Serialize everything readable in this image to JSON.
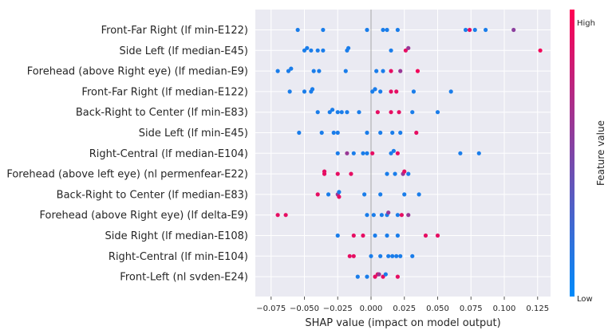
{
  "chart_data": {
    "type": "scatter",
    "subtype": "beeswarm",
    "xlabel": "SHAP value (impact on model output)",
    "xticks": [
      -0.075,
      -0.05,
      -0.025,
      0.0,
      0.025,
      0.05,
      0.075,
      0.1,
      0.125
    ],
    "xtick_labels": [
      "−0.075",
      "−0.050",
      "−0.025",
      "0.000",
      "0.025",
      "0.050",
      "0.075",
      "0.100",
      "0.125"
    ],
    "xlim": [
      -0.085,
      0.137
    ],
    "grid": true,
    "colorbar": {
      "title": "Feature value",
      "high_label": "High",
      "low_label": "Low",
      "high_color": "#ff0052",
      "low_color": "#008bfb"
    },
    "features": [
      {
        "name": "Front-Far Right (lf min-E122)",
        "points": [
          {
            "x": -0.055,
            "v": 0.1
          },
          {
            "x": -0.036,
            "v": 0.1
          },
          {
            "x": -0.003,
            "v": 0.1
          },
          {
            "x": 0.009,
            "v": 0.1
          },
          {
            "x": 0.012,
            "v": 0.1
          },
          {
            "x": 0.02,
            "v": 0.1
          },
          {
            "x": 0.071,
            "v": 0.1
          },
          {
            "x": 0.074,
            "v": 0.9
          },
          {
            "x": 0.078,
            "v": 0.1
          },
          {
            "x": 0.086,
            "v": 0.1
          },
          {
            "x": 0.107,
            "v": 0.55
          }
        ]
      },
      {
        "name": "Side Left (lf median-E45)",
        "points": [
          {
            "x": -0.05,
            "v": 0.1
          },
          {
            "x": -0.048,
            "v": 0.1
          },
          {
            "x": -0.045,
            "v": 0.1
          },
          {
            "x": -0.04,
            "v": 0.1
          },
          {
            "x": -0.036,
            "v": 0.1
          },
          {
            "x": -0.018,
            "v": 0.1
          },
          {
            "x": -0.017,
            "v": 0.1
          },
          {
            "x": 0.015,
            "v": 0.1
          },
          {
            "x": 0.026,
            "v": 0.9
          },
          {
            "x": 0.028,
            "v": 0.6
          },
          {
            "x": 0.127,
            "v": 0.95
          }
        ]
      },
      {
        "name": "Forehead (above Right eye) (lf median-E9)",
        "points": [
          {
            "x": -0.07,
            "v": 0.1
          },
          {
            "x": -0.062,
            "v": 0.1
          },
          {
            "x": -0.06,
            "v": 0.1
          },
          {
            "x": -0.043,
            "v": 0.1
          },
          {
            "x": -0.039,
            "v": 0.1
          },
          {
            "x": -0.019,
            "v": 0.1
          },
          {
            "x": 0.004,
            "v": 0.1
          },
          {
            "x": 0.009,
            "v": 0.1
          },
          {
            "x": 0.015,
            "v": 0.9
          },
          {
            "x": 0.022,
            "v": 0.6
          },
          {
            "x": 0.035,
            "v": 0.95
          }
        ]
      },
      {
        "name": "Front-Far Right (lf median-E122)",
        "points": [
          {
            "x": -0.061,
            "v": 0.1
          },
          {
            "x": -0.05,
            "v": 0.1
          },
          {
            "x": -0.045,
            "v": 0.1
          },
          {
            "x": -0.044,
            "v": 0.1
          },
          {
            "x": 0.001,
            "v": 0.1
          },
          {
            "x": 0.003,
            "v": 0.1
          },
          {
            "x": 0.007,
            "v": 0.1
          },
          {
            "x": 0.015,
            "v": 0.9
          },
          {
            "x": 0.019,
            "v": 0.9
          },
          {
            "x": 0.032,
            "v": 0.1
          },
          {
            "x": 0.06,
            "v": 0.1
          }
        ]
      },
      {
        "name": "Back-Right to Center (lf min-E83)",
        "points": [
          {
            "x": -0.04,
            "v": 0.1
          },
          {
            "x": -0.031,
            "v": 0.1
          },
          {
            "x": -0.029,
            "v": 0.1
          },
          {
            "x": -0.025,
            "v": 0.1
          },
          {
            "x": -0.022,
            "v": 0.1
          },
          {
            "x": -0.018,
            "v": 0.1
          },
          {
            "x": -0.009,
            "v": 0.1
          },
          {
            "x": 0.005,
            "v": 0.9
          },
          {
            "x": 0.015,
            "v": 0.9
          },
          {
            "x": 0.021,
            "v": 0.9
          },
          {
            "x": 0.031,
            "v": 0.1
          },
          {
            "x": 0.05,
            "v": 0.1
          }
        ]
      },
      {
        "name": "Side Left (lf min-E45)",
        "points": [
          {
            "x": -0.054,
            "v": 0.1
          },
          {
            "x": -0.037,
            "v": 0.1
          },
          {
            "x": -0.028,
            "v": 0.1
          },
          {
            "x": -0.025,
            "v": 0.1
          },
          {
            "x": -0.003,
            "v": 0.1
          },
          {
            "x": 0.007,
            "v": 0.1
          },
          {
            "x": 0.016,
            "v": 0.1
          },
          {
            "x": 0.022,
            "v": 0.1
          },
          {
            "x": 0.034,
            "v": 0.9
          }
        ]
      },
      {
        "name": "Right-Central (lf median-E104)",
        "points": [
          {
            "x": -0.025,
            "v": 0.1
          },
          {
            "x": -0.018,
            "v": 0.6
          },
          {
            "x": -0.013,
            "v": 0.1
          },
          {
            "x": -0.006,
            "v": 0.1
          },
          {
            "x": -0.003,
            "v": 0.1
          },
          {
            "x": 0.001,
            "v": 0.9
          },
          {
            "x": 0.015,
            "v": 0.1
          },
          {
            "x": 0.017,
            "v": 0.1
          },
          {
            "x": 0.02,
            "v": 0.9
          },
          {
            "x": 0.067,
            "v": 0.1
          },
          {
            "x": 0.081,
            "v": 0.1
          }
        ]
      },
      {
        "name": "Forehead (above left eye) (nl permenfear-E22)",
        "points": [
          {
            "x": -0.035,
            "v": 0.9
          },
          {
            "x": -0.035,
            "v": 0.9
          },
          {
            "x": -0.025,
            "v": 0.9
          },
          {
            "x": -0.015,
            "v": 0.9
          },
          {
            "x": 0.012,
            "v": 0.1
          },
          {
            "x": 0.018,
            "v": 0.1
          },
          {
            "x": 0.024,
            "v": 0.6
          },
          {
            "x": 0.025,
            "v": 0.9
          },
          {
            "x": 0.028,
            "v": 0.1
          }
        ]
      },
      {
        "name": "Back-Right to Center (lf median-E83)",
        "points": [
          {
            "x": -0.04,
            "v": 0.9
          },
          {
            "x": -0.032,
            "v": 0.1
          },
          {
            "x": -0.025,
            "v": 0.6
          },
          {
            "x": -0.024,
            "v": 0.1
          },
          {
            "x": -0.024,
            "v": 0.9
          },
          {
            "x": -0.005,
            "v": 0.1
          },
          {
            "x": 0.007,
            "v": 0.1
          },
          {
            "x": 0.025,
            "v": 0.1
          },
          {
            "x": 0.036,
            "v": 0.1
          }
        ]
      },
      {
        "name": "Forehead (above Right eye) (lf delta-E9)",
        "points": [
          {
            "x": -0.07,
            "v": 0.9
          },
          {
            "x": -0.064,
            "v": 0.9
          },
          {
            "x": -0.003,
            "v": 0.1
          },
          {
            "x": 0.002,
            "v": 0.1
          },
          {
            "x": 0.008,
            "v": 0.1
          },
          {
            "x": 0.012,
            "v": 0.1
          },
          {
            "x": 0.013,
            "v": 0.6
          },
          {
            "x": 0.02,
            "v": 0.1
          },
          {
            "x": 0.023,
            "v": 0.9
          },
          {
            "x": 0.028,
            "v": 0.6
          }
        ]
      },
      {
        "name": "Side Right (lf median-E108)",
        "points": [
          {
            "x": -0.025,
            "v": 0.1
          },
          {
            "x": -0.013,
            "v": 0.9
          },
          {
            "x": -0.006,
            "v": 0.9
          },
          {
            "x": 0.003,
            "v": 0.1
          },
          {
            "x": 0.012,
            "v": 0.1
          },
          {
            "x": 0.02,
            "v": 0.1
          },
          {
            "x": 0.041,
            "v": 0.9
          },
          {
            "x": 0.05,
            "v": 0.9
          }
        ]
      },
      {
        "name": "Right-Central (lf min-E104)",
        "points": [
          {
            "x": -0.016,
            "v": 0.9
          },
          {
            "x": -0.013,
            "v": 0.9
          },
          {
            "x": 0.0,
            "v": 0.1
          },
          {
            "x": 0.007,
            "v": 0.1
          },
          {
            "x": 0.013,
            "v": 0.1
          },
          {
            "x": 0.016,
            "v": 0.1
          },
          {
            "x": 0.019,
            "v": 0.1
          },
          {
            "x": 0.022,
            "v": 0.1
          },
          {
            "x": 0.031,
            "v": 0.1
          }
        ]
      },
      {
        "name": "Front-Left (nl svden-E24)",
        "points": [
          {
            "x": -0.01,
            "v": 0.1
          },
          {
            "x": -0.003,
            "v": 0.1
          },
          {
            "x": 0.003,
            "v": 0.9
          },
          {
            "x": 0.005,
            "v": 0.9
          },
          {
            "x": 0.006,
            "v": 0.6
          },
          {
            "x": 0.009,
            "v": 0.9
          },
          {
            "x": 0.011,
            "v": 0.1
          },
          {
            "x": 0.02,
            "v": 0.9
          }
        ]
      }
    ]
  }
}
